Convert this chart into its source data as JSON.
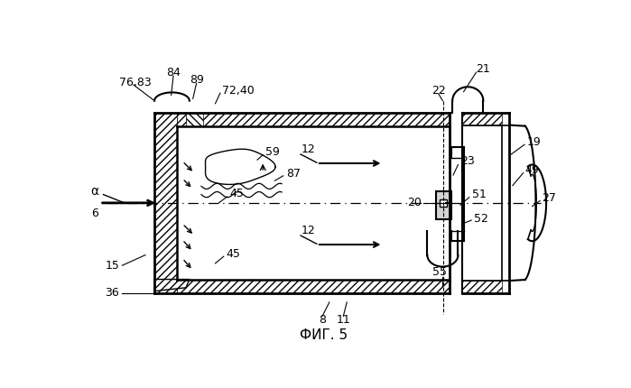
{
  "bg_color": "#ffffff",
  "title": "ФИГ. 5",
  "title_fontsize": 11,
  "fig_width": 6.99,
  "fig_height": 4.3,
  "dpi": 100
}
